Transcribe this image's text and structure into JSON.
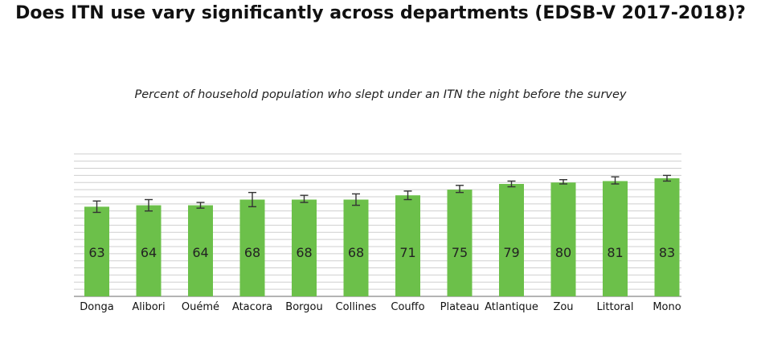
{
  "title": "Does ITN use vary significantly across departments (EDSB-V 2017-2018)?",
  "chart_data": {
    "type": "bar",
    "title": "Does ITN use vary significantly across departments (EDSB-V 2017-2018)?",
    "subtitle": "Percent of household population who slept under an ITN the night before the survey",
    "xlabel": "",
    "ylabel": "",
    "ylim": [
      0,
      100
    ],
    "grid": true,
    "legend": "none",
    "bar_color": "#6cc04a",
    "categories": [
      "Donga",
      "Alibori",
      "Ouémé",
      "Atacora",
      "Borgou",
      "Collines",
      "Couffo",
      "Plateau",
      "Atlantique",
      "Zou",
      "Littoral",
      "Mono"
    ],
    "values": [
      63,
      64,
      64,
      68,
      68,
      68,
      71,
      75,
      79,
      80,
      81,
      83
    ],
    "error_low": [
      59,
      60,
      62,
      63,
      66,
      64,
      68,
      73,
      77,
      79,
      79,
      81
    ],
    "error_high": [
      67,
      68,
      66,
      73,
      71,
      72,
      74,
      78,
      81,
      82,
      84,
      85
    ]
  }
}
